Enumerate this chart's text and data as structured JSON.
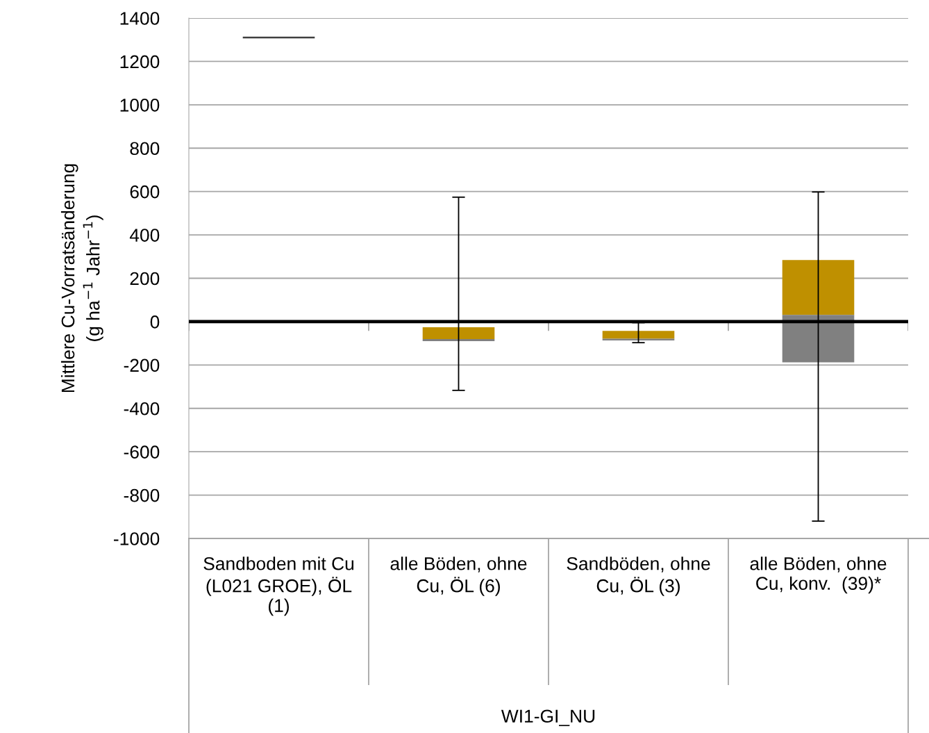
{
  "chart_data": {
    "type": "bar",
    "stacked": true,
    "categories": [
      "Sandboden mit Cu (L021 GROE), ÖL (1)",
      "alle Böden, ohne Cu, ÖL (6)",
      "Sandböden, ohne Cu, ÖL (3)",
      "alle Böden, ohne Cu, konv.  (39)*"
    ],
    "annotations": [
      "WI1-GI_NU"
    ],
    "ylabel": "Mittlere Cu-Vorratsänderung\n(g ha$^{−1}$ Jahr$^{−1}$)",
    "series": [
      {
        "color": "#bf9000",
        "base": [
          null,
          -26,
          -43,
          31
        ],
        "values": [
          null,
          -54,
          -36,
          253
        ]
      },
      {
        "color": "#808080",
        "base": [
          null,
          -80,
          -79,
          31
        ],
        "values": [
          null,
          -10,
          -8,
          -219
        ],
        "errors": [
          null,
          [
            -317,
            574
          ],
          [
            -97,
            -5
          ],
          [
            -920,
            598
          ]
        ]
      },
      {
        "color": "#404040",
        "base": [
          1310,
          null,
          null,
          null
        ],
        "values": [
          0,
          null,
          null,
          null
        ]
      }
    ],
    "ylim": [
      -1000,
      1400
    ],
    "yticks": [
      -1000,
      -800,
      -600,
      -400,
      -200,
      0,
      200,
      400,
      600,
      800,
      1000,
      1200,
      1400
    ],
    "grid": "y",
    "ref_lines": [
      {
        "axis": "y",
        "value": 0,
        "color": "#000000"
      }
    ]
  }
}
